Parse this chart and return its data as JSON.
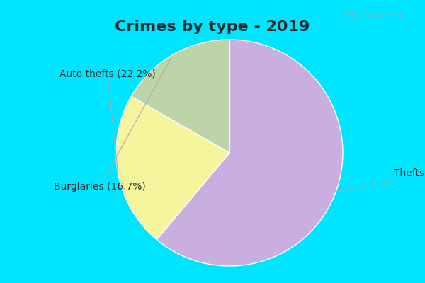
{
  "title": "Crimes by type - 2019",
  "slices": [
    {
      "label": "Thefts",
      "pct": 61.1,
      "color": "#c9aee0"
    },
    {
      "label": "Auto thefts",
      "pct": 22.2,
      "color": "#f5f59e"
    },
    {
      "label": "Burglaries",
      "pct": 16.7,
      "color": "#bdd4a8"
    }
  ],
  "border_color": "#00e5ff",
  "border_width": 8,
  "title_fontsize": 16,
  "label_fontsize": 10,
  "title_color": "#2a2a2a",
  "label_color": "#2a2a2a",
  "watermark": "City-Data.com",
  "startangle": 90,
  "annotation_color": "#aaaaaa"
}
